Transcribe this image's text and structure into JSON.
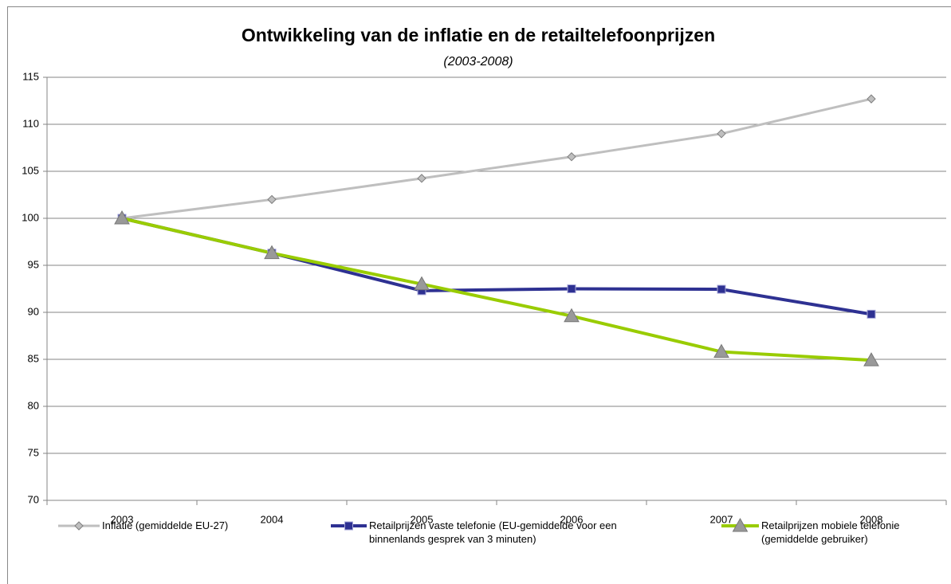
{
  "chart_data": {
    "type": "line",
    "title": "Ontwikkeling van de inflatie en de retailtelefoonprijzen",
    "subtitle": "(2003-2008)",
    "categories": [
      "2003",
      "2004",
      "2005",
      "2006",
      "2007",
      "2008"
    ],
    "series": [
      {
        "name": "Inflatie (gemiddelde EU-27)",
        "color": "#bfbfbf",
        "marker": "diamond",
        "values": [
          100,
          102.0,
          104.25,
          106.55,
          109.0,
          112.7
        ]
      },
      {
        "name": "Retailprijzen vaste telefonie (EU-gemiddelde voor een binnenlands gesprek van 3 minuten)",
        "color": "#2e3192",
        "marker": "square",
        "values": [
          100,
          96.3,
          92.3,
          92.5,
          92.45,
          89.8
        ]
      },
      {
        "name": "Retailprijzen mobiele telefonie (gemiddelde gebruiker)",
        "color": "#99cc00",
        "marker": "triangle",
        "values": [
          100,
          96.3,
          93.0,
          89.6,
          85.8,
          84.9
        ]
      }
    ],
    "ylim": [
      70,
      115
    ],
    "yticks": [
      70,
      75,
      80,
      85,
      90,
      95,
      100,
      105,
      110,
      115
    ],
    "grid": true,
    "legend": "bottom"
  }
}
